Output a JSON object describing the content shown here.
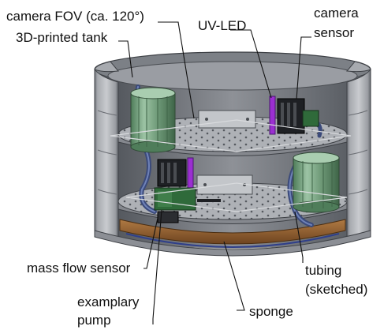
{
  "figure": {
    "labels": {
      "camera_fov": "camera FOV (ca. 120°)",
      "tank": "3D-printed tank",
      "uv_led": "UV-LED",
      "camera_sensor_line1": "camera",
      "camera_sensor_line2": "sensor",
      "mass_flow_sensor": "mass flow sensor",
      "tubing_line1": "tubing",
      "tubing_line2": "(sketched)",
      "pump_line1": "examplary",
      "pump_line2": "pump",
      "sponge": "sponge"
    },
    "colors": {
      "tank_grey": "#8c8f95",
      "plate_grey": "#b9bcc1",
      "sponge_brown": "#8a5a2c",
      "led_purple": "#9b2fd1",
      "pump_green": "#2f6a3a",
      "canister_green": "#6f9a78",
      "tubing_blue": "#3b4a7a"
    }
  }
}
